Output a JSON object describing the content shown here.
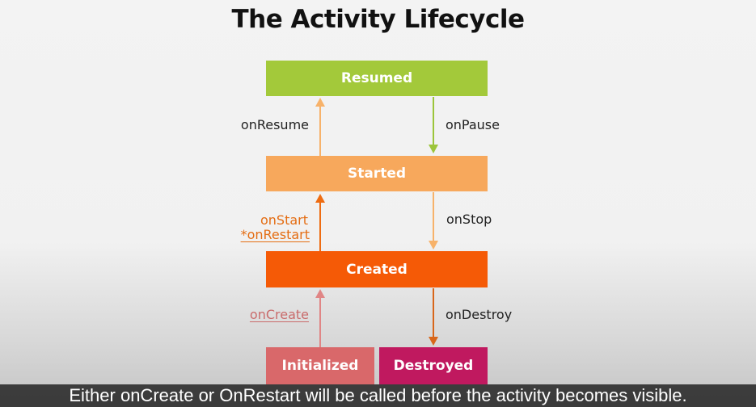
{
  "title": "The Activity Lifecycle",
  "states": {
    "resumed": {
      "label": "Resumed",
      "color": "#a3c93a"
    },
    "started": {
      "label": "Started",
      "color": "#f7a85c"
    },
    "created": {
      "label": "Created",
      "color": "#f55a06"
    },
    "initialized": {
      "label": "Initialized",
      "color": "#d9686a"
    },
    "destroyed": {
      "label": "Destroyed",
      "color": "#c0195f"
    }
  },
  "transitions": {
    "on_resume": "onResume",
    "on_pause": "onPause",
    "on_start": "onStart",
    "on_restart": "*onRestart",
    "on_stop": "onStop",
    "on_create": "onCreate",
    "on_destroy": "onDestroy"
  },
  "caption": "Either onCreate or OnRestart will be called before the activity becomes visible."
}
